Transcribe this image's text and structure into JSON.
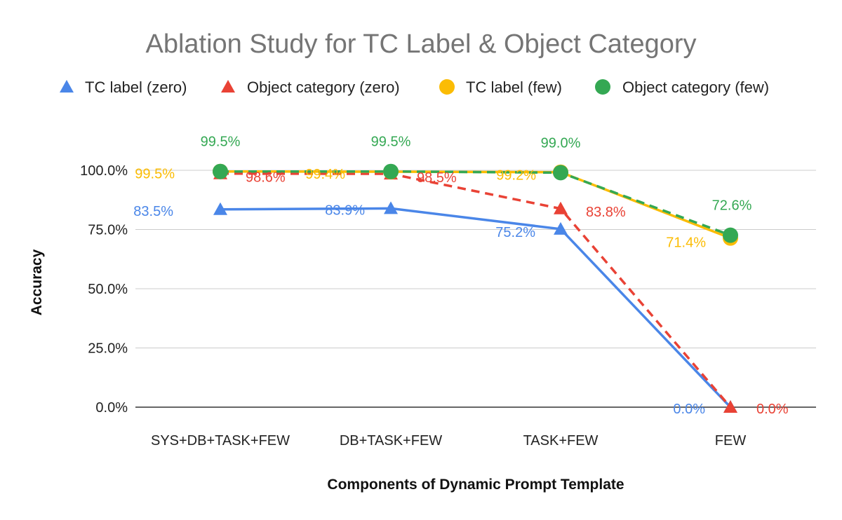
{
  "chart_data": {
    "type": "line",
    "title": "Ablation Study for TC Label & Object Category",
    "xlabel": "Components of Dynamic Prompt Template",
    "ylabel": "Accuracy",
    "categories": [
      "SYS+DB+TASK+FEW",
      "DB+TASK+FEW",
      "TASK+FEW",
      "FEW"
    ],
    "ylim": [
      0,
      100
    ],
    "yticks": [
      0,
      25,
      50,
      75,
      100
    ],
    "ytick_labels": [
      "0.0%",
      "25.0%",
      "50.0%",
      "75.0%",
      "100.0%"
    ],
    "grid": true,
    "legend_position": "top",
    "series": [
      {
        "name": "TC label (zero)",
        "values": [
          83.5,
          83.9,
          75.2,
          0.0
        ],
        "labels": [
          "83.5%",
          "83.9%",
          "75.2%",
          "0.0%"
        ],
        "color": "#4a86e8",
        "marker": "triangle",
        "dash": "solid"
      },
      {
        "name": "Object category (zero)",
        "values": [
          98.6,
          98.5,
          83.8,
          0.0
        ],
        "labels": [
          "98.6%",
          "98.5%",
          "83.8%",
          "0.0%"
        ],
        "color": "#e94235",
        "marker": "triangle",
        "dash": "dashed"
      },
      {
        "name": "TC label (few)",
        "values": [
          99.5,
          99.4,
          99.2,
          71.4
        ],
        "labels": [
          "99.5%",
          "99.4%",
          "99.2%",
          "71.4%"
        ],
        "color": "#fbbc04",
        "marker": "circle",
        "dash": "solid"
      },
      {
        "name": "Object category (few)",
        "values": [
          99.5,
          99.5,
          99.0,
          72.6
        ],
        "labels": [
          "99.5%",
          "99.5%",
          "99.0%",
          "72.6%"
        ],
        "color": "#34a853",
        "marker": "circle",
        "dash": "dashed"
      }
    ]
  }
}
